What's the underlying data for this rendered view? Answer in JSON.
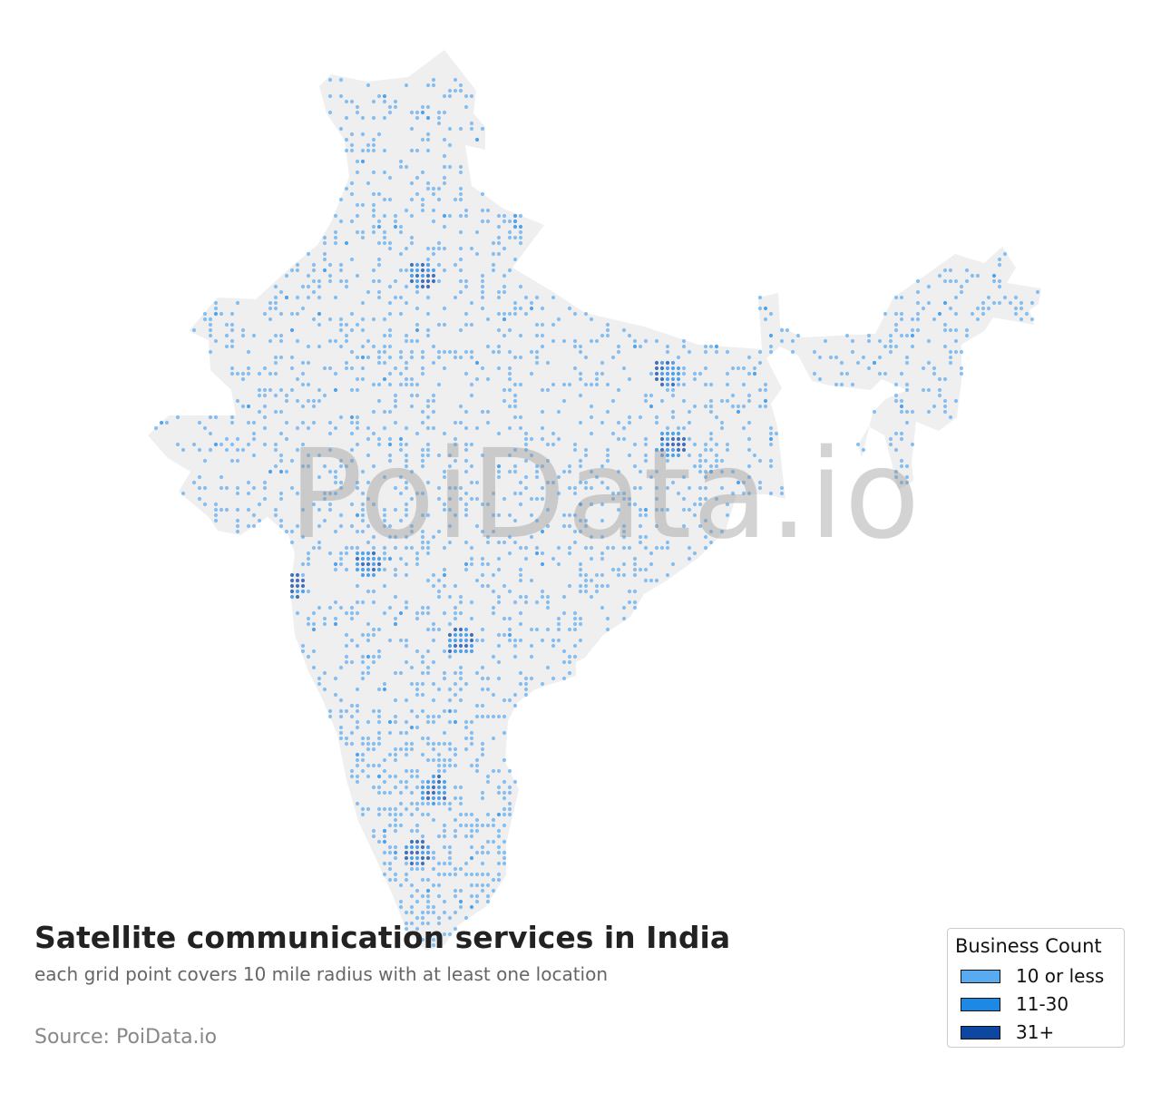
{
  "title": "Satellite communication services in India",
  "subtitle": "each grid point covers 10 mile radius with at least one location",
  "source": "Source: PoiData.io",
  "watermark": "PoiData.io",
  "colors": {
    "land": "#efefef",
    "low": "#5aaaf0",
    "mid": "#1e88e5",
    "high": "#0d47a1"
  },
  "legend": {
    "title": "Business Count",
    "items": [
      {
        "label": "10 or less",
        "color": "#5aaaf0"
      },
      {
        "label": "11-30",
        "color": "#1e88e5"
      },
      {
        "label": "31+",
        "color": "#0d47a1"
      }
    ]
  }
}
